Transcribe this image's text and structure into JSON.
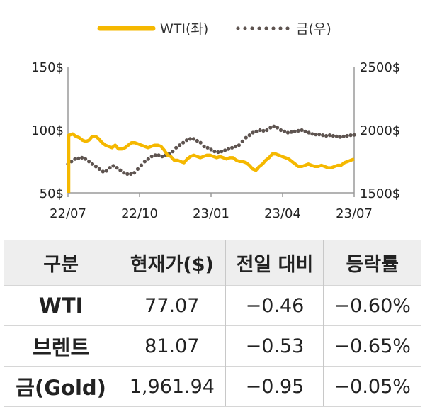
{
  "chart_data": {
    "type": "line",
    "legend_placement": "top",
    "x_ticks": [
      "22/07",
      "22/10",
      "23/01",
      "23/04",
      "23/07"
    ],
    "y_left": {
      "min": 50,
      "max": 150,
      "ticks": [
        "150$",
        "100$",
        "50$"
      ]
    },
    "y_right": {
      "min": 1500,
      "max": 2500,
      "ticks": [
        "2500$",
        "2000$",
        "1500$"
      ]
    },
    "grid": false,
    "series": [
      {
        "name": "WTI(좌)",
        "axis": "left",
        "style": "solid",
        "color": "#f5b800",
        "values": [
          96,
          97,
          95,
          94,
          92,
          91,
          92,
          95,
          95,
          93,
          90,
          88,
          87,
          86,
          88,
          85,
          85,
          86,
          88,
          90,
          90,
          89,
          88,
          87,
          86,
          87,
          88,
          88,
          87,
          84,
          80,
          79,
          76,
          76,
          75,
          74,
          77,
          79,
          80,
          79,
          78,
          79,
          80,
          80,
          79,
          78,
          79,
          78,
          77,
          78,
          78,
          76,
          75,
          75,
          74,
          72,
          69,
          68,
          71,
          73,
          76,
          78,
          81,
          81,
          80,
          79,
          78,
          77,
          75,
          73,
          71,
          71,
          72,
          73,
          72,
          71,
          71,
          72,
          71,
          70,
          70,
          71,
          72,
          72,
          74,
          75,
          76,
          77
        ]
      },
      {
        "name": "금(우)",
        "axis": "right",
        "style": "dotted",
        "color": "#5e5450",
        "values": [
          1730,
          1750,
          1770,
          1775,
          1780,
          1770,
          1750,
          1730,
          1710,
          1690,
          1670,
          1675,
          1700,
          1715,
          1700,
          1680,
          1660,
          1650,
          1650,
          1660,
          1690,
          1720,
          1750,
          1770,
          1790,
          1800,
          1800,
          1790,
          1800,
          1810,
          1830,
          1860,
          1880,
          1900,
          1920,
          1930,
          1930,
          1915,
          1900,
          1870,
          1860,
          1845,
          1830,
          1825,
          1830,
          1840,
          1850,
          1860,
          1870,
          1880,
          1910,
          1940,
          1960,
          1980,
          1990,
          2000,
          1995,
          2000,
          2020,
          2030,
          2020,
          2000,
          1990,
          1980,
          1985,
          1990,
          1995,
          2000,
          1990,
          1980,
          1970,
          1965,
          1965,
          1960,
          1955,
          1960,
          1955,
          1950,
          1945,
          1950,
          1955,
          1960,
          1962
        ]
      }
    ]
  },
  "table": {
    "headers": [
      "구분",
      "현재가($)",
      "전일 대비",
      "등락률"
    ],
    "rows": [
      {
        "name": "WTI",
        "price": "77.07",
        "change": "−0.46",
        "rate": "−0.60%"
      },
      {
        "name": "브렌트",
        "price": "81.07",
        "change": "−0.53",
        "rate": "−0.65%"
      },
      {
        "name": "금(Gold)",
        "price": "1,961.94",
        "change": "−0.95",
        "rate": "−0.05%"
      }
    ]
  }
}
